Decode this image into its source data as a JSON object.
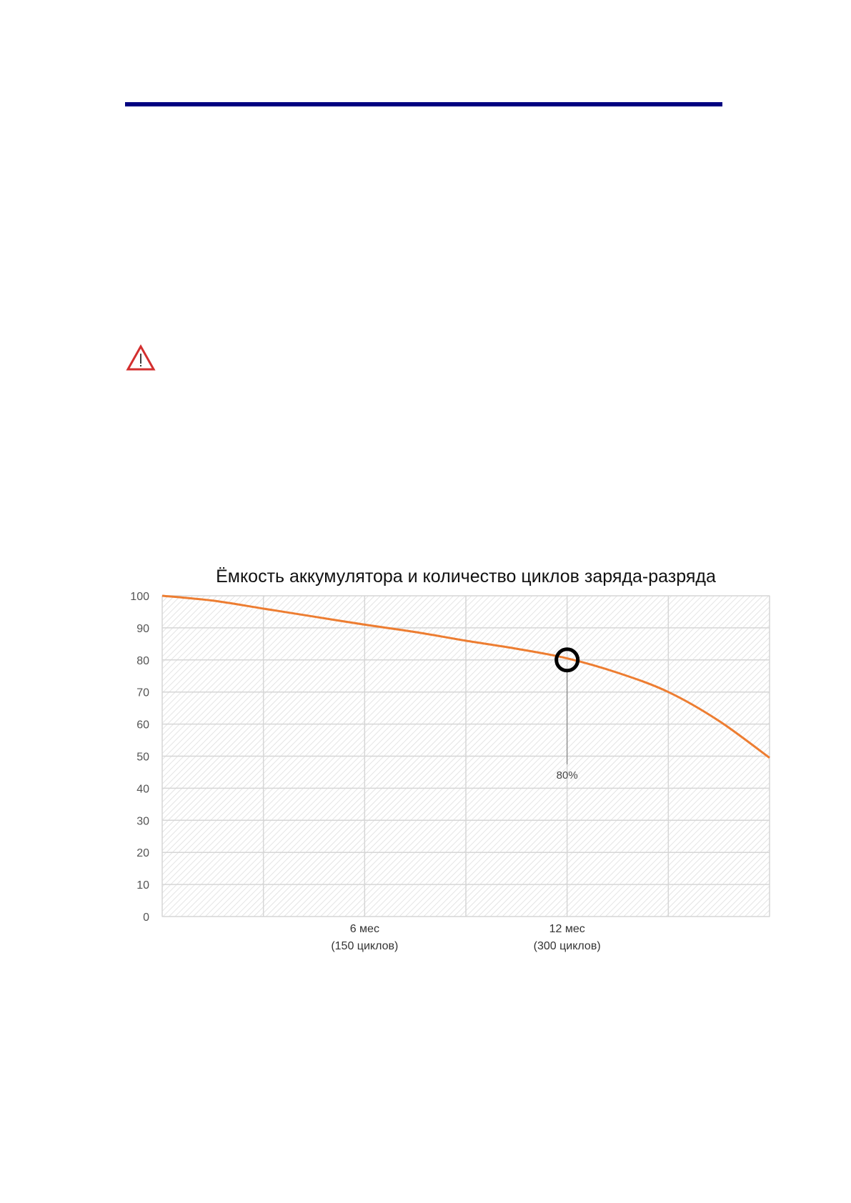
{
  "page": {
    "rule_color": "#000080",
    "warning_icon": "warning-triangle-icon",
    "warning_color": "#d32f2f"
  },
  "chart_data": {
    "type": "line",
    "title": "Ёмкость аккумулятора и количество циклов заряда-разряда",
    "xlabel": "",
    "ylabel": "",
    "x": [
      0,
      1.5,
      3,
      4.5,
      6,
      7.5,
      9,
      10.5,
      12,
      13.5,
      15,
      16.5,
      18
    ],
    "series": [
      {
        "values": [
          100,
          98.5,
          96,
          93.5,
          91,
          88.7,
          86,
          83.5,
          80.5,
          76,
          70,
          61,
          49.5
        ],
        "color": "#ED7D31"
      }
    ],
    "xlim": [
      0,
      18
    ],
    "ylim": [
      0,
      100
    ],
    "yticks": [
      "0",
      "10",
      "20",
      "30",
      "40",
      "50",
      "60",
      "70",
      "80",
      "90",
      "100"
    ],
    "xgrid": [
      0,
      3,
      6,
      9,
      12,
      15,
      18
    ],
    "xtick_labels": [
      {
        "x": 6,
        "line1": "6 мес",
        "line2": "(150 циклов)"
      },
      {
        "x": 12,
        "line1": "12 мес",
        "line2": "(300 циклов)"
      }
    ],
    "annotation": {
      "x": 12,
      "y": 80,
      "label": "80%",
      "marker": "circle"
    },
    "grid": true,
    "background": "diagonal-hatch"
  }
}
